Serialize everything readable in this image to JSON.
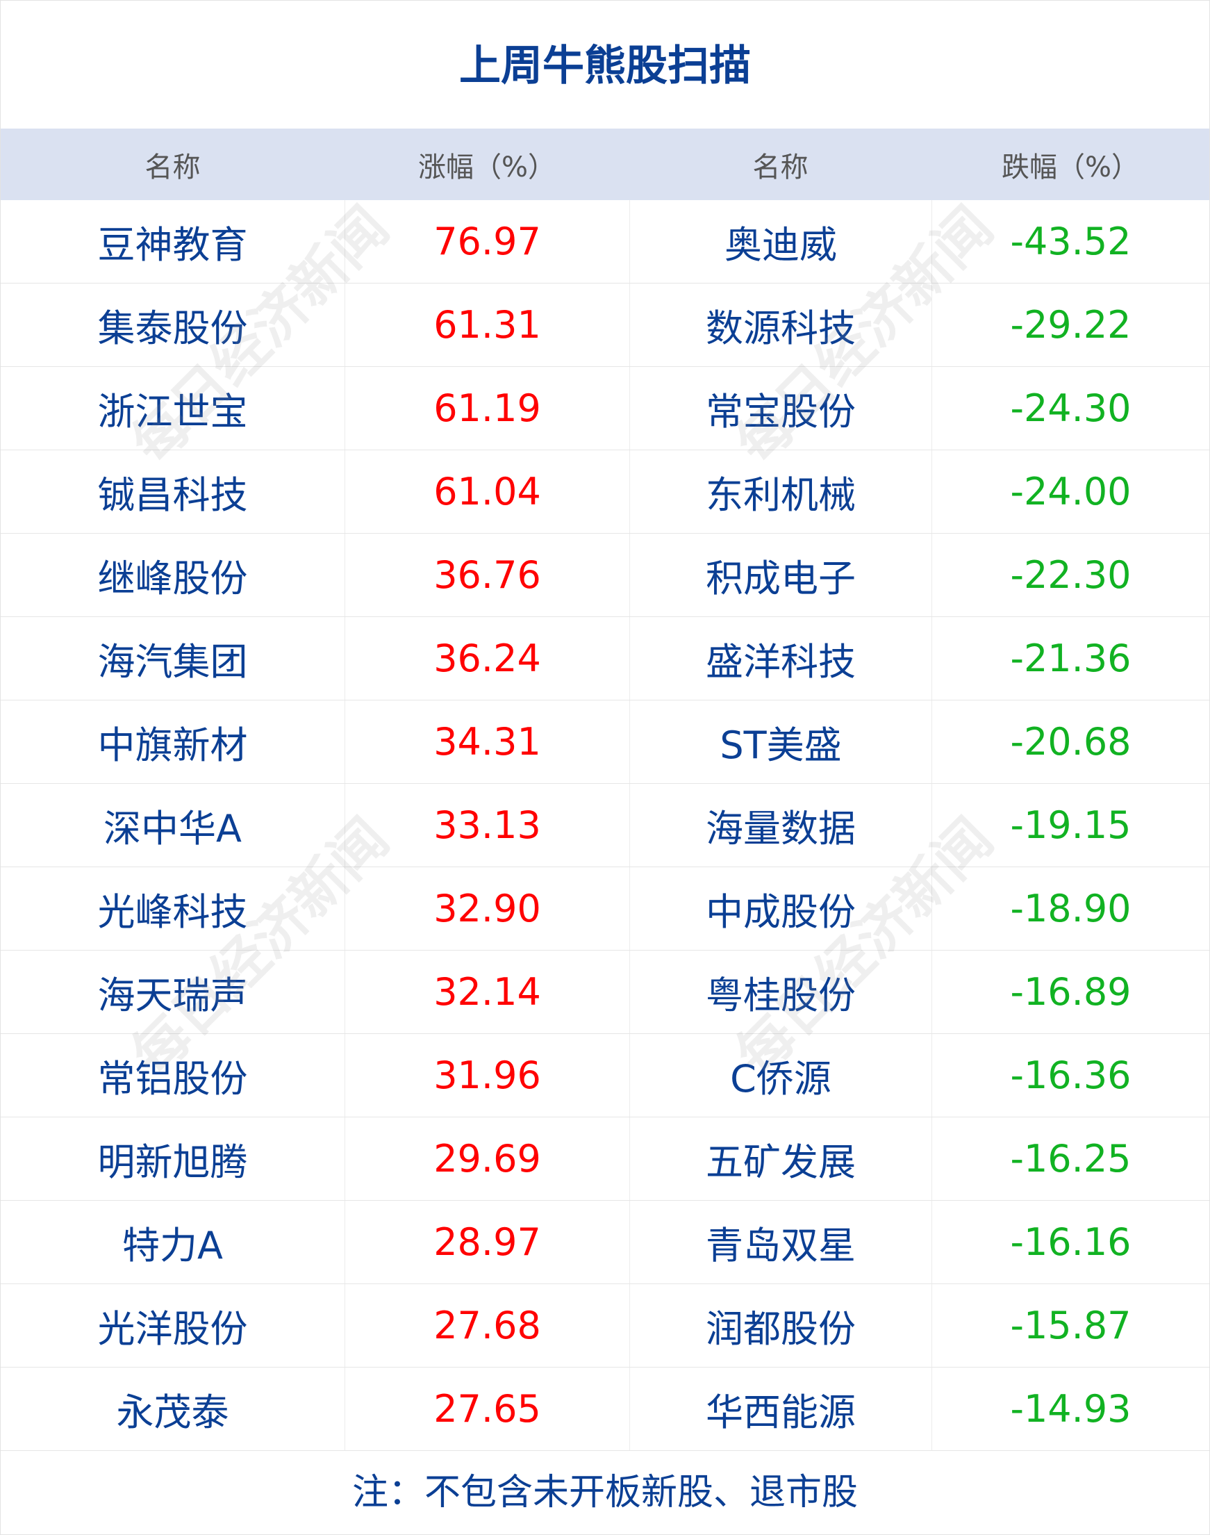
{
  "title": "上周牛熊股扫描",
  "watermark": "每日经济新闻",
  "colors": {
    "title": "#0b3f94",
    "gain": "#ff0000",
    "loss": "#11b222",
    "header_bg": "#dae1f1"
  },
  "headers": [
    "名称",
    "涨幅（%）",
    "名称",
    "跌幅（%）"
  ],
  "rows": [
    {
      "gainer": "豆神教育",
      "gain": "76.97",
      "loser": "奥迪威",
      "loss": "-43.52"
    },
    {
      "gainer": "集泰股份",
      "gain": "61.31",
      "loser": "数源科技",
      "loss": "-29.22"
    },
    {
      "gainer": "浙江世宝",
      "gain": "61.19",
      "loser": "常宝股份",
      "loss": "-24.30"
    },
    {
      "gainer": "铖昌科技",
      "gain": "61.04",
      "loser": "东利机械",
      "loss": "-24.00"
    },
    {
      "gainer": "继峰股份",
      "gain": "36.76",
      "loser": "积成电子",
      "loss": "-22.30"
    },
    {
      "gainer": "海汽集团",
      "gain": "36.24",
      "loser": "盛洋科技",
      "loss": "-21.36"
    },
    {
      "gainer": "中旗新材",
      "gain": "34.31",
      "loser": "ST美盛",
      "loss": "-20.68"
    },
    {
      "gainer": "深中华A",
      "gain": "33.13",
      "loser": "海量数据",
      "loss": "-19.15"
    },
    {
      "gainer": "光峰科技",
      "gain": "32.90",
      "loser": "中成股份",
      "loss": "-18.90"
    },
    {
      "gainer": "海天瑞声",
      "gain": "32.14",
      "loser": "粤桂股份",
      "loss": "-16.89"
    },
    {
      "gainer": "常铝股份",
      "gain": "31.96",
      "loser": "C侨源",
      "loss": "-16.36"
    },
    {
      "gainer": "明新旭腾",
      "gain": "29.69",
      "loser": "五矿发展",
      "loss": "-16.25"
    },
    {
      "gainer": "特力A",
      "gain": "28.97",
      "loser": "青岛双星",
      "loss": "-16.16"
    },
    {
      "gainer": "光洋股份",
      "gain": "27.68",
      "loser": "润都股份",
      "loss": "-15.87"
    },
    {
      "gainer": "永茂泰",
      "gain": "27.65",
      "loser": "华西能源",
      "loss": "-14.93"
    }
  ],
  "note": "注：不包含未开板新股、退市股"
}
